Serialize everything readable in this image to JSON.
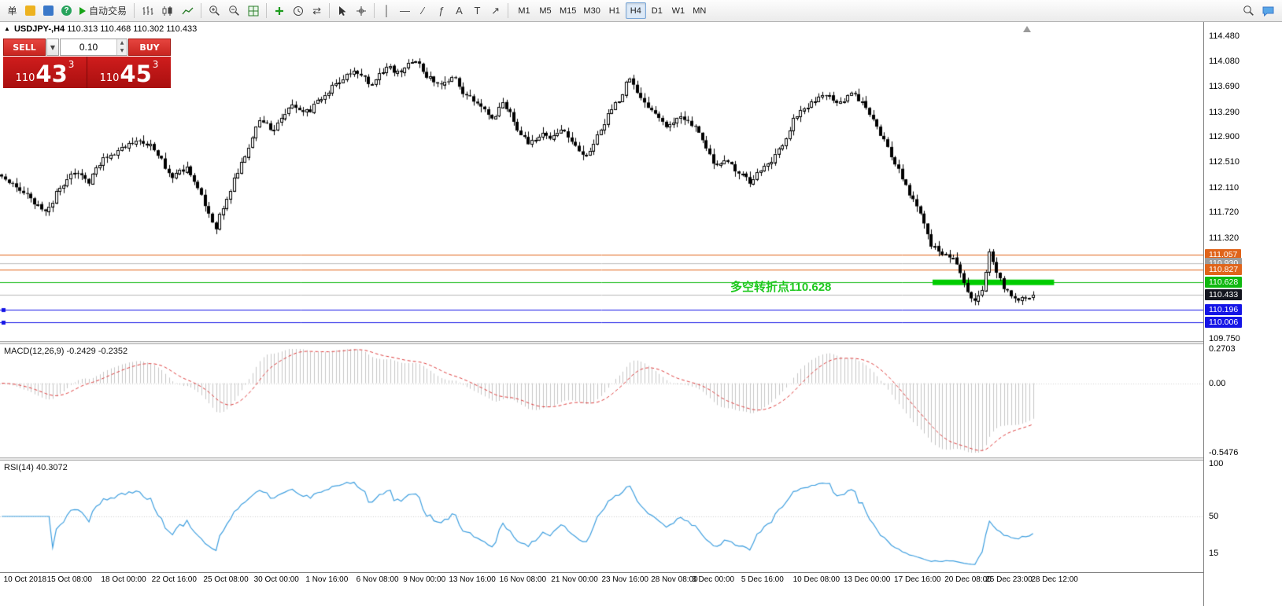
{
  "toolbar": {
    "new_order_label": "单",
    "autotrade_label": "自动交易",
    "help_icon_glyph": "?",
    "vertical_line_glyph": "│",
    "horizontal_line_glyph": "—",
    "trendline_glyph": "∕",
    "fibonacci_glyph": "ƒ",
    "text_tool_glyph": "A",
    "label_tool_glyph": "T",
    "arrow_tool_glyph": "↗",
    "shift_tool_glyph": "⇄",
    "timeframes": [
      "M1",
      "M5",
      "M15",
      "M30",
      "H1",
      "H4",
      "D1",
      "W1",
      "MN"
    ],
    "active_timeframe": "H4"
  },
  "chart_header": {
    "symbol": "USDJPY-,H4",
    "ohlc": "110.313 110.468 110.302 110.433"
  },
  "trade_panel": {
    "sell_label": "SELL",
    "buy_label": "BUY",
    "volume": "0.10",
    "dropdown_glyph": "▼",
    "spin_up_glyph": "▲",
    "spin_down_glyph": "▼",
    "sell_base": "110",
    "sell_pips": "43",
    "sell_sup": "3",
    "buy_base": "110",
    "buy_pips": "45",
    "buy_sup": "3"
  },
  "annotation": {
    "text": "多空转折点110.628",
    "color": "#1ec81e"
  },
  "chart_data": {
    "type": "candlestick",
    "symbol": "USDJPY",
    "timeframe": "H4",
    "price_pane": {
      "top_price": 114.7,
      "bottom_price": 109.71,
      "axis_ticks": [
        {
          "v": 114.48,
          "label": "114.480"
        },
        {
          "v": 114.08,
          "label": "114.080"
        },
        {
          "v": 113.69,
          "label": "113.690"
        },
        {
          "v": 113.29,
          "label": "113.290"
        },
        {
          "v": 112.9,
          "label": "112.900"
        },
        {
          "v": 112.51,
          "label": "112.510"
        },
        {
          "v": 112.11,
          "label": "112.110"
        },
        {
          "v": 111.72,
          "label": "111.720"
        },
        {
          "v": 111.32,
          "label": "111.320"
        },
        {
          "v": 109.75,
          "label": "109.750"
        }
      ],
      "candle_count": 285,
      "right_margin_frac": 0.14,
      "jitter": 0.05,
      "wick": 0.09,
      "last_close": 110.433,
      "keypoints": [
        [
          0.0,
          112.27
        ],
        [
          0.02,
          112.05
        ],
        [
          0.042,
          111.74
        ],
        [
          0.068,
          112.4
        ],
        [
          0.084,
          112.18
        ],
        [
          0.099,
          112.58
        ],
        [
          0.118,
          112.74
        ],
        [
          0.133,
          112.88
        ],
        [
          0.148,
          112.7
        ],
        [
          0.164,
          112.28
        ],
        [
          0.179,
          112.44
        ],
        [
          0.194,
          111.96
        ],
        [
          0.207,
          111.46
        ],
        [
          0.221,
          112.08
        ],
        [
          0.236,
          112.64
        ],
        [
          0.251,
          113.18
        ],
        [
          0.262,
          113.0
        ],
        [
          0.278,
          113.38
        ],
        [
          0.297,
          113.3
        ],
        [
          0.312,
          113.56
        ],
        [
          0.327,
          113.8
        ],
        [
          0.342,
          113.92
        ],
        [
          0.357,
          113.74
        ],
        [
          0.373,
          114.0
        ],
        [
          0.388,
          113.9
        ],
        [
          0.399,
          114.14
        ],
        [
          0.411,
          113.86
        ],
        [
          0.426,
          113.7
        ],
        [
          0.437,
          113.88
        ],
        [
          0.449,
          113.56
        ],
        [
          0.464,
          113.4
        ],
        [
          0.475,
          113.2
        ],
        [
          0.487,
          113.44
        ],
        [
          0.498,
          113.08
        ],
        [
          0.51,
          112.78
        ],
        [
          0.521,
          112.95
        ],
        [
          0.532,
          112.88
        ],
        [
          0.544,
          113.0
        ],
        [
          0.555,
          112.78
        ],
        [
          0.567,
          112.58
        ],
        [
          0.578,
          112.95
        ],
        [
          0.589,
          113.3
        ],
        [
          0.601,
          113.52
        ],
        [
          0.608,
          113.84
        ],
        [
          0.624,
          113.44
        ],
        [
          0.635,
          113.2
        ],
        [
          0.646,
          113.08
        ],
        [
          0.658,
          113.2
        ],
        [
          0.669,
          113.12
        ],
        [
          0.681,
          112.78
        ],
        [
          0.692,
          112.4
        ],
        [
          0.703,
          112.58
        ],
        [
          0.715,
          112.33
        ],
        [
          0.726,
          112.2
        ],
        [
          0.738,
          112.4
        ],
        [
          0.749,
          112.58
        ],
        [
          0.76,
          112.88
        ],
        [
          0.768,
          113.18
        ],
        [
          0.779,
          113.38
        ],
        [
          0.791,
          113.5
        ],
        [
          0.802,
          113.56
        ],
        [
          0.814,
          113.44
        ],
        [
          0.825,
          113.56
        ],
        [
          0.837,
          113.38
        ],
        [
          0.848,
          113.08
        ],
        [
          0.859,
          112.78
        ],
        [
          0.867,
          112.46
        ],
        [
          0.878,
          112.08
        ],
        [
          0.89,
          111.72
        ],
        [
          0.901,
          111.22
        ],
        [
          0.913,
          111.04
        ],
        [
          0.924,
          110.96
        ],
        [
          0.935,
          110.5
        ],
        [
          0.943,
          110.28
        ],
        [
          0.952,
          110.55
        ],
        [
          0.957,
          111.12
        ],
        [
          0.963,
          110.85
        ],
        [
          0.97,
          110.6
        ],
        [
          0.977,
          110.42
        ],
        [
          0.985,
          110.32
        ],
        [
          0.991,
          110.36
        ],
        [
          1.0,
          110.433
        ]
      ],
      "levels": [
        {
          "price": 111.057,
          "label": "111.057",
          "color": "#e0641a",
          "badge_bg": "#e0641a",
          "badge_fg": "#ffffff",
          "handles": false
        },
        {
          "price": 110.93,
          "label": "110.930",
          "color": "#b8b8b8",
          "badge_bg": "#9c9c9c",
          "badge_fg": "#ffffff",
          "handles": false
        },
        {
          "price": 110.827,
          "label": "110.827",
          "color": "#e0641a",
          "badge_bg": "#e0641a",
          "badge_fg": "#ffffff",
          "handles": false
        },
        {
          "price": 110.628,
          "label": "110.628",
          "color": "#0fb80f",
          "badge_bg": "#0fb80f",
          "badge_fg": "#ffffff",
          "handles": false
        },
        {
          "price": 110.196,
          "label": "110.196",
          "color": "#1414e6",
          "badge_bg": "#1414e6",
          "badge_fg": "#ffffff",
          "handles": true
        },
        {
          "price": 110.006,
          "label": "110.006",
          "color": "#1414e6",
          "badge_bg": "#1414e6",
          "badge_fg": "#ffffff",
          "handles": true
        }
      ],
      "current_price": {
        "value": 110.433,
        "label": "110.433",
        "badge_bg": "#14161f",
        "badge_fg": "#ffffff",
        "line_color": "#b8b8b8"
      },
      "green_zone": {
        "price": 110.628,
        "x0": 0.775,
        "x1": 0.876,
        "thickness": 7,
        "color": "#00cc00"
      }
    },
    "macd_pane": {
      "label": "MACD(12,26,9) -0.2429 -0.2352",
      "params": {
        "fast": 12,
        "slow": 26,
        "signal": 9
      },
      "axis": {
        "max": 0.2703,
        "min": -0.5476
      },
      "axis_labels": [
        {
          "v": 0.2703,
          "label": "0.2703"
        },
        {
          "v": 0.0,
          "label": "0.00"
        },
        {
          "v": -0.5476,
          "label": "-0.5476"
        }
      ],
      "histogram_color": "#c6c6c6",
      "signal_color": "#dd3c3c"
    },
    "rsi_pane": {
      "label": "RSI(14) 40.3072",
      "period": 14,
      "line_color": "#3f9fdf",
      "level": 50,
      "axis_labels": [
        {
          "v": 100,
          "label": "100"
        },
        {
          "v": 50,
          "label": "50"
        },
        {
          "v": 15,
          "label": "15"
        }
      ]
    },
    "time_axis": [
      {
        "t": 0.003,
        "label": "10 Oct 2018"
      },
      {
        "t": 0.039,
        "label": "15 Oct 08:00"
      },
      {
        "t": 0.084,
        "label": "18 Oct 00:00"
      },
      {
        "t": 0.126,
        "label": "22 Oct 16:00"
      },
      {
        "t": 0.169,
        "label": "25 Oct 08:00"
      },
      {
        "t": 0.211,
        "label": "30 Oct 00:00"
      },
      {
        "t": 0.254,
        "label": "1 Nov 16:00"
      },
      {
        "t": 0.296,
        "label": "6 Nov 08:00"
      },
      {
        "t": 0.335,
        "label": "9 Nov 00:00"
      },
      {
        "t": 0.373,
        "label": "13 Nov 16:00"
      },
      {
        "t": 0.415,
        "label": "16 Nov 08:00"
      },
      {
        "t": 0.458,
        "label": "21 Nov 00:00"
      },
      {
        "t": 0.5,
        "label": "23 Nov 16:00"
      },
      {
        "t": 0.541,
        "label": "28 Nov 08:00"
      },
      {
        "t": 0.575,
        "label": "3 Dec 00:00"
      },
      {
        "t": 0.616,
        "label": "5 Dec 16:00"
      },
      {
        "t": 0.659,
        "label": "10 Dec 08:00"
      },
      {
        "t": 0.701,
        "label": "13 Dec 00:00"
      },
      {
        "t": 0.743,
        "label": "17 Dec 16:00"
      },
      {
        "t": 0.785,
        "label": "20 Dec 08:00"
      },
      {
        "t": 0.819,
        "label": "25 Dec 23:00"
      },
      {
        "t": 0.857,
        "label": "28 Dec 12:00"
      }
    ]
  }
}
